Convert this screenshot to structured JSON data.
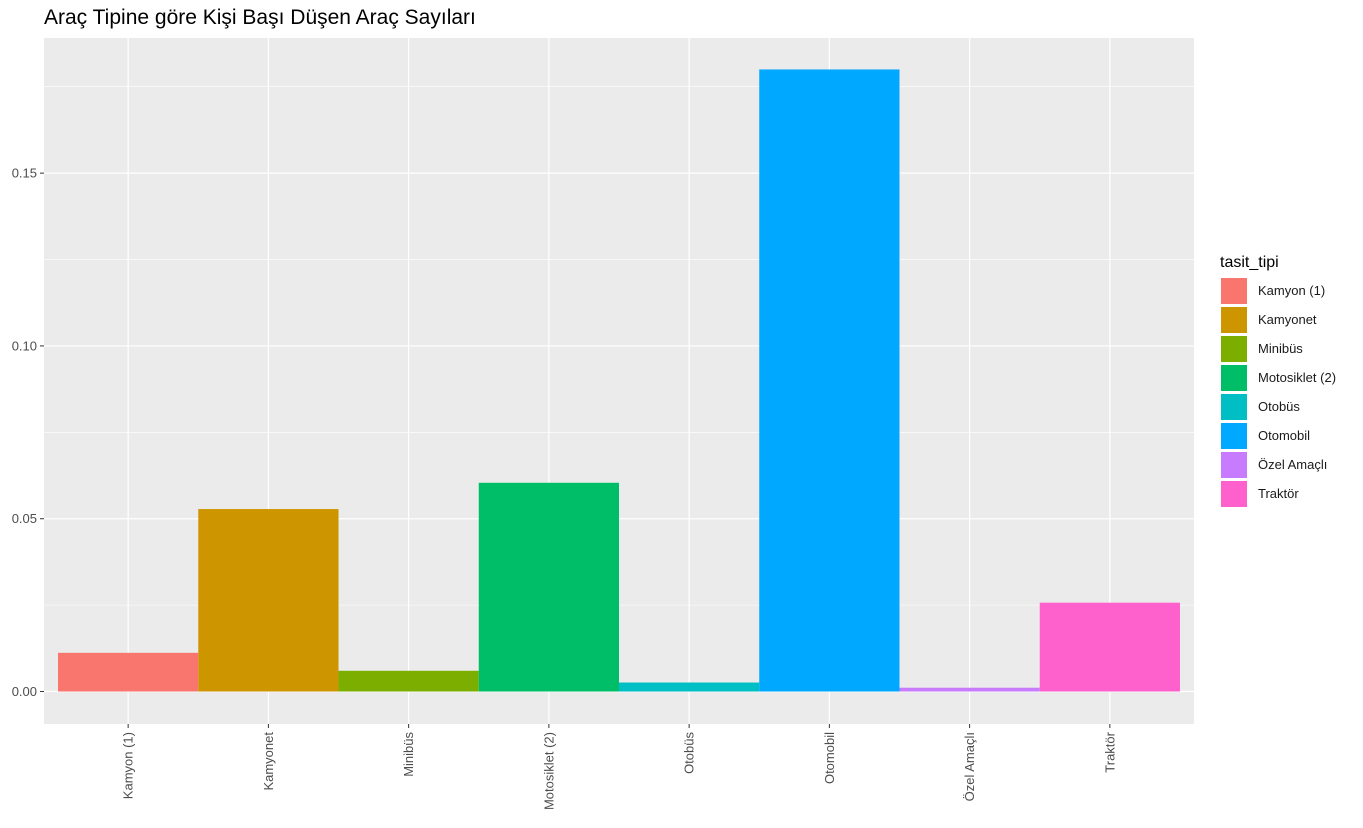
{
  "chart_data": {
    "type": "bar",
    "title": "Araç Tipine göre Kişi Başı Düşen Araç Sayıları",
    "xlabel": "",
    "ylabel": "",
    "categories": [
      "Kamyon (1)",
      "Kamyonet",
      "Minibüs",
      "Motosiklet (2)",
      "Otobüs",
      "Otomobil",
      "Özel Amaçlı",
      "Traktör"
    ],
    "values": [
      0.0112,
      0.0528,
      0.006,
      0.0604,
      0.0026,
      0.18,
      0.0011,
      0.0257
    ],
    "colors": [
      "#F8766D",
      "#CD9600",
      "#7CAE00",
      "#00BE67",
      "#00BFC4",
      "#00A9FF",
      "#C77CFF",
      "#FF61CC"
    ],
    "ylim": [
      -0.0094,
      0.1891
    ],
    "yticks": [
      0.0,
      0.05,
      0.1,
      0.15
    ],
    "ytick_labels": [
      "0.00",
      "0.05",
      "0.10",
      "0.15"
    ],
    "panel_background": "#EBEBEB",
    "grid": true,
    "legend": {
      "title": "tasit_tipi",
      "position": "right"
    }
  }
}
